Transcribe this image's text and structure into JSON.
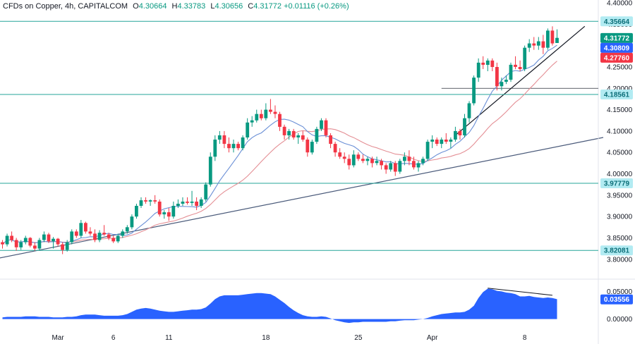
{
  "header": {
    "symbol": "CFDs on Copper, 4h, CAPITALCOM",
    "open_label": "O",
    "open": "4.30664",
    "high_label": "H",
    "high": "4.33783",
    "low_label": "L",
    "low": "4.30656",
    "close_label": "C",
    "close": "4.31772",
    "change": "+0.01116 (+0.26%)"
  },
  "chart_data": {
    "type": "candlestick",
    "price_axis": {
      "ylim": [
        3.77,
        4.4
      ],
      "ticks": [
        "4.40000",
        "4.35000",
        "4.30000",
        "4.25000",
        "4.20000",
        "4.15000",
        "4.10000",
        "4.05000",
        "4.00000",
        "3.95000",
        "3.90000",
        "3.85000",
        "3.80000"
      ],
      "tick_values": [
        4.4,
        4.35,
        4.3,
        4.25,
        4.2,
        4.15,
        4.1,
        4.05,
        4.0,
        3.95,
        3.9,
        3.85,
        3.8
      ]
    },
    "time_axis": {
      "bars": 121,
      "labels": [
        {
          "text": "Mar",
          "bar": 12
        },
        {
          "text": "6",
          "bar": 24
        },
        {
          "text": "11",
          "bar": 36
        },
        {
          "text": "18",
          "bar": 57
        },
        {
          "text": "25",
          "bar": 77
        },
        {
          "text": "Apr",
          "bar": 93
        },
        {
          "text": "8",
          "bar": 113
        }
      ]
    },
    "candles": [
      [
        3.84,
        3.845,
        3.825,
        3.835
      ],
      [
        3.835,
        3.86,
        3.83,
        3.855
      ],
      [
        3.855,
        3.865,
        3.84,
        3.845
      ],
      [
        3.845,
        3.85,
        3.82,
        3.828
      ],
      [
        3.828,
        3.845,
        3.822,
        3.84
      ],
      [
        3.84,
        3.855,
        3.835,
        3.85
      ],
      [
        3.85,
        3.852,
        3.828,
        3.832
      ],
      [
        3.832,
        3.84,
        3.82,
        3.825
      ],
      [
        3.825,
        3.85,
        3.82,
        3.845
      ],
      [
        3.845,
        3.865,
        3.84,
        3.858
      ],
      [
        3.858,
        3.862,
        3.838,
        3.842
      ],
      [
        3.842,
        3.852,
        3.825,
        3.848
      ],
      [
        3.848,
        3.85,
        3.83,
        3.835
      ],
      [
        3.835,
        3.84,
        3.812,
        3.822
      ],
      [
        3.822,
        3.845,
        3.818,
        3.84
      ],
      [
        3.84,
        3.87,
        3.835,
        3.865
      ],
      [
        3.865,
        3.87,
        3.85,
        3.855
      ],
      [
        3.855,
        3.892,
        3.85,
        3.885
      ],
      [
        3.885,
        3.888,
        3.86,
        3.865
      ],
      [
        3.865,
        3.875,
        3.855,
        3.86
      ],
      [
        3.86,
        3.87,
        3.84,
        3.845
      ],
      [
        3.845,
        3.868,
        3.84,
        3.862
      ],
      [
        3.862,
        3.88,
        3.855,
        3.858
      ],
      [
        3.858,
        3.862,
        3.845,
        3.85
      ],
      [
        3.85,
        3.855,
        3.838,
        3.842
      ],
      [
        3.842,
        3.86,
        3.838,
        3.855
      ],
      [
        3.855,
        3.87,
        3.85,
        3.865
      ],
      [
        3.865,
        3.88,
        3.86,
        3.875
      ],
      [
        3.875,
        3.905,
        3.87,
        3.9
      ],
      [
        3.9,
        3.93,
        3.895,
        3.925
      ],
      [
        3.925,
        3.945,
        3.92,
        3.938
      ],
      [
        3.938,
        3.945,
        3.93,
        3.935
      ],
      [
        3.935,
        3.94,
        3.925,
        3.938
      ],
      [
        3.938,
        3.95,
        3.93,
        3.935
      ],
      [
        3.935,
        3.94,
        3.9,
        3.905
      ],
      [
        3.905,
        3.915,
        3.895,
        3.91
      ],
      [
        3.91,
        3.92,
        3.89,
        3.9
      ],
      [
        3.9,
        3.935,
        3.895,
        3.925
      ],
      [
        3.925,
        3.94,
        3.92,
        3.93
      ],
      [
        3.93,
        3.945,
        3.925,
        3.935
      ],
      [
        3.935,
        3.945,
        3.928,
        3.932
      ],
      [
        3.932,
        3.96,
        3.925,
        3.935
      ],
      [
        3.935,
        3.945,
        3.915,
        3.925
      ],
      [
        3.925,
        3.945,
        3.92,
        3.94
      ],
      [
        3.94,
        3.98,
        3.935,
        3.975
      ],
      [
        3.975,
        4.05,
        3.97,
        4.04
      ],
      [
        4.04,
        4.09,
        4.03,
        4.08
      ],
      [
        4.08,
        4.1,
        4.07,
        4.09
      ],
      [
        4.09,
        4.1,
        4.06,
        4.07
      ],
      [
        4.07,
        4.085,
        4.05,
        4.06
      ],
      [
        4.06,
        4.08,
        4.05,
        4.07
      ],
      [
        4.07,
        4.075,
        4.055,
        4.06
      ],
      [
        4.06,
        4.09,
        4.055,
        4.085
      ],
      [
        4.085,
        4.13,
        4.08,
        4.12
      ],
      [
        4.12,
        4.135,
        4.11,
        4.125
      ],
      [
        4.125,
        4.15,
        4.12,
        4.14
      ],
      [
        4.14,
        4.15,
        4.125,
        4.13
      ],
      [
        4.13,
        4.165,
        4.125,
        4.15
      ],
      [
        4.15,
        4.175,
        4.14,
        4.145
      ],
      [
        4.145,
        4.16,
        4.13,
        4.14
      ],
      [
        4.14,
        4.145,
        4.1,
        4.11
      ],
      [
        4.11,
        4.115,
        4.08,
        4.09
      ],
      [
        4.09,
        4.105,
        4.08,
        4.1
      ],
      [
        4.1,
        4.105,
        4.08,
        4.085
      ],
      [
        4.085,
        4.095,
        4.07,
        4.09
      ],
      [
        4.09,
        4.1,
        4.075,
        4.08
      ],
      [
        4.08,
        4.085,
        4.04,
        4.05
      ],
      [
        4.05,
        4.08,
        4.045,
        4.075
      ],
      [
        4.075,
        4.11,
        4.07,
        4.105
      ],
      [
        4.105,
        4.13,
        4.1,
        4.125
      ],
      [
        4.125,
        4.13,
        4.085,
        4.09
      ],
      [
        4.09,
        4.095,
        4.06,
        4.07
      ],
      [
        4.07,
        4.075,
        4.04,
        4.05
      ],
      [
        4.05,
        4.06,
        4.035,
        4.04
      ],
      [
        4.04,
        4.05,
        4.025,
        4.035
      ],
      [
        4.035,
        4.045,
        4.01,
        4.02
      ],
      [
        4.02,
        4.055,
        4.015,
        4.045
      ],
      [
        4.045,
        4.05,
        4.03,
        4.035
      ],
      [
        4.035,
        4.045,
        4.025,
        4.03
      ],
      [
        4.03,
        4.04,
        4.02,
        4.035
      ],
      [
        4.035,
        4.04,
        4.015,
        4.025
      ],
      [
        4.025,
        4.04,
        4.02,
        4.03
      ],
      [
        4.03,
        4.035,
        4.01,
        4.02
      ],
      [
        4.02,
        4.025,
        4.0,
        4.01
      ],
      [
        4.01,
        4.03,
        4.005,
        4.025
      ],
      [
        4.025,
        4.03,
        3.995,
        4.005
      ],
      [
        4.005,
        4.035,
        4.0,
        4.03
      ],
      [
        4.03,
        4.05,
        4.02,
        4.04
      ],
      [
        4.04,
        4.055,
        4.02,
        4.03
      ],
      [
        4.03,
        4.04,
        4.01,
        4.015
      ],
      [
        4.015,
        4.03,
        4.005,
        4.025
      ],
      [
        4.025,
        4.04,
        4.02,
        4.035
      ],
      [
        4.035,
        4.08,
        4.03,
        4.075
      ],
      [
        4.075,
        4.09,
        4.06,
        4.08
      ],
      [
        4.08,
        4.085,
        4.065,
        4.07
      ],
      [
        4.07,
        4.085,
        4.06,
        4.08
      ],
      [
        4.08,
        4.095,
        4.07,
        4.075
      ],
      [
        4.075,
        4.085,
        4.06,
        4.08
      ],
      [
        4.08,
        4.11,
        4.075,
        4.1
      ],
      [
        4.1,
        4.105,
        4.08,
        4.09
      ],
      [
        4.09,
        4.14,
        4.085,
        4.13
      ],
      [
        4.13,
        4.17,
        4.12,
        4.165
      ],
      [
        4.165,
        4.23,
        4.16,
        4.225
      ],
      [
        4.225,
        4.27,
        4.215,
        4.26
      ],
      [
        4.26,
        4.275,
        4.245,
        4.255
      ],
      [
        4.255,
        4.27,
        4.24,
        4.265
      ],
      [
        4.265,
        4.27,
        4.24,
        4.25
      ],
      [
        4.25,
        4.26,
        4.195,
        4.205
      ],
      [
        4.205,
        4.225,
        4.195,
        4.215
      ],
      [
        4.215,
        4.23,
        4.21,
        4.22
      ],
      [
        4.22,
        4.26,
        4.215,
        4.255
      ],
      [
        4.255,
        4.275,
        4.245,
        4.25
      ],
      [
        4.25,
        4.265,
        4.24,
        4.245
      ],
      [
        4.245,
        4.3,
        4.24,
        4.295
      ],
      [
        4.295,
        4.315,
        4.285,
        4.305
      ],
      [
        4.305,
        4.32,
        4.29,
        4.3
      ],
      [
        4.3,
        4.32,
        4.29,
        4.31
      ],
      [
        4.31,
        4.325,
        4.28,
        4.295
      ],
      [
        4.295,
        4.34,
        4.29,
        4.335
      ],
      [
        4.335,
        4.345,
        4.3,
        4.305
      ],
      [
        4.306,
        4.338,
        4.306,
        4.318
      ]
    ],
    "ma_fast": {
      "color": "#6a8fd6",
      "period": 9
    },
    "ma_slow": {
      "color": "#e48f95",
      "period": 20
    },
    "horizontal_levels": [
      {
        "value": 4.35664,
        "label": "4.35664",
        "color": "#26a69a"
      },
      {
        "value": 4.18561,
        "label": "4.18561",
        "color": "#26a69a"
      },
      {
        "value": 3.97779,
        "label": "3.97779",
        "color": "#26a69a"
      },
      {
        "value": 3.82081,
        "label": "3.82081",
        "color": "#26a69a"
      }
    ],
    "short_level": {
      "value": 4.2,
      "from_bar": 95
    },
    "trendlines": [
      {
        "from_bar": -2,
        "from_value": 3.8,
        "to_bar": 130,
        "to_value": 4.085,
        "color": "#4a5a7a"
      },
      {
        "from_bar": 98,
        "from_value": 4.09,
        "to_bar": 126,
        "to_value": 4.345,
        "color": "#131722"
      }
    ],
    "price_tags": [
      {
        "value": 4.31772,
        "label": "4.31772",
        "bg": "#089981",
        "fg": "#ffffff"
      },
      {
        "value": 4.30809,
        "label": "4.30809",
        "bg": "#2962ff",
        "fg": "#ffffff"
      },
      {
        "value": 4.2776,
        "label": "4.27760",
        "bg": "#f23645",
        "fg": "#ffffff"
      }
    ],
    "oscillator": {
      "color": "#2962ff",
      "ylim": [
        -0.012,
        0.062
      ],
      "ticks": [
        "0.05000",
        "0.00000"
      ],
      "tick_values": [
        0.05,
        0.0
      ],
      "current_label": "0.03556",
      "current": 0.03556,
      "values": [
        0.003,
        0.004,
        0.004,
        0.004,
        0.004,
        0.005,
        0.005,
        0.005,
        0.004,
        0.004,
        0.004,
        0.003,
        0.003,
        0.003,
        0.004,
        0.004,
        0.005,
        0.007,
        0.008,
        0.008,
        0.008,
        0.007,
        0.006,
        0.006,
        0.006,
        0.006,
        0.007,
        0.009,
        0.013,
        0.017,
        0.019,
        0.02,
        0.019,
        0.017,
        0.015,
        0.014,
        0.013,
        0.013,
        0.014,
        0.015,
        0.016,
        0.017,
        0.017,
        0.018,
        0.021,
        0.028,
        0.036,
        0.041,
        0.043,
        0.043,
        0.043,
        0.043,
        0.044,
        0.045,
        0.046,
        0.047,
        0.047,
        0.046,
        0.045,
        0.041,
        0.035,
        0.029,
        0.022,
        0.016,
        0.011,
        0.007,
        0.005,
        0.004,
        0.004,
        0.005,
        0.004,
        0.001,
        -0.002,
        -0.004,
        -0.006,
        -0.007,
        -0.006,
        -0.006,
        -0.005,
        -0.005,
        -0.005,
        -0.005,
        -0.005,
        -0.005,
        -0.004,
        -0.004,
        -0.003,
        -0.002,
        -0.002,
        -0.002,
        -0.001,
        0.0,
        0.002,
        0.005,
        0.007,
        0.009,
        0.01,
        0.011,
        0.012,
        0.012,
        0.013,
        0.017,
        0.024,
        0.038,
        0.049,
        0.055,
        0.054,
        0.051,
        0.05,
        0.048,
        0.047,
        0.045,
        0.041,
        0.041,
        0.042,
        0.04,
        0.039,
        0.038,
        0.039,
        0.038,
        0.036
      ],
      "divergence_line": {
        "from_bar": 105,
        "from_value": 0.056,
        "to_bar": 119,
        "to_value": 0.043,
        "color": "#131722"
      }
    }
  }
}
